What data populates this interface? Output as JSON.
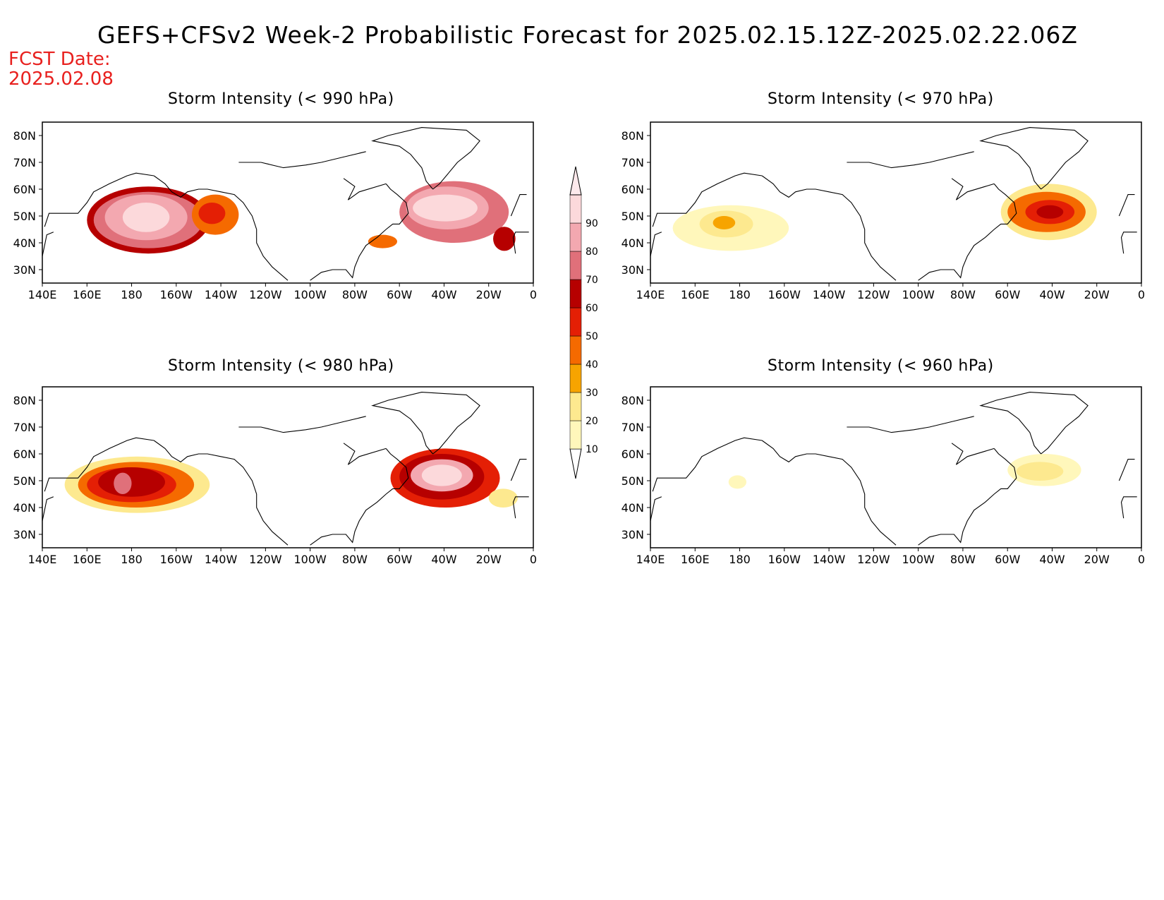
{
  "title": "GEFS+CFSv2 Week-2 Probabilistic Forecast for 2025.02.15.12Z-2025.02.22.06Z",
  "fcst_label": "FCST Date:",
  "fcst_date": "2025.02.08",
  "colors": {
    "text_red": "#e8201e",
    "levels": [
      "#fff7bb",
      "#fde98f",
      "#f7a400",
      "#f56a00",
      "#e41f05",
      "#b60000",
      "#e0707a",
      "#f3a8b0",
      "#fcd9db"
    ]
  },
  "colorbar": {
    "levels": [
      "10",
      "20",
      "30",
      "40",
      "50",
      "60",
      "70",
      "80",
      "90"
    ]
  },
  "map": {
    "lon_labels": [
      "140E",
      "160E",
      "180",
      "160W",
      "140W",
      "120W",
      "100W",
      "80W",
      "60W",
      "40W",
      "20W",
      "0"
    ],
    "lat_labels": [
      "80N",
      "70N",
      "60N",
      "50N",
      "40N",
      "30N"
    ],
    "lon_range": [
      140,
      360
    ],
    "lat_range": [
      25,
      85
    ]
  },
  "panels": [
    {
      "title": "Storm Intensity (< 990 hPa)",
      "fields": [
        {
          "lon": [
            160,
            215
          ],
          "lat": [
            36,
            61
          ],
          "level": 5
        },
        {
          "lon": [
            163,
            212
          ],
          "lat": [
            38,
            59
          ],
          "level": 6
        },
        {
          "lon": [
            168,
            205
          ],
          "lat": [
            41,
            58
          ],
          "level": 7
        },
        {
          "lon": [
            176,
            197
          ],
          "lat": [
            44,
            55
          ],
          "level": 8
        },
        {
          "lon": [
            207,
            228
          ],
          "lat": [
            43,
            58
          ],
          "level": 3
        },
        {
          "lon": [
            210,
            222
          ],
          "lat": [
            47,
            55
          ],
          "level": 4
        },
        {
          "lon": [
            300,
            349
          ],
          "lat": [
            40,
            63
          ],
          "level": 6
        },
        {
          "lon": [
            303,
            340
          ],
          "lat": [
            45,
            61
          ],
          "level": 7
        },
        {
          "lon": [
            306,
            335
          ],
          "lat": [
            48,
            58
          ],
          "level": 8
        },
        {
          "lon": [
            342,
            352
          ],
          "lat": [
            37,
            46
          ],
          "level": 5
        },
        {
          "lon": [
            286,
            299
          ],
          "lat": [
            38,
            43
          ],
          "level": 3
        }
      ]
    },
    {
      "title": "Storm Intensity (< 970 hPa)",
      "fields": [
        {
          "lon": [
            150,
            202
          ],
          "lat": [
            37,
            54
          ],
          "level": 0
        },
        {
          "lon": [
            162,
            186
          ],
          "lat": [
            42,
            52
          ],
          "level": 1
        },
        {
          "lon": [
            168,
            178
          ],
          "lat": [
            45,
            50
          ],
          "level": 2
        },
        {
          "lon": [
            297,
            340
          ],
          "lat": [
            41,
            62
          ],
          "level": 1
        },
        {
          "lon": [
            300,
            335
          ],
          "lat": [
            44,
            59
          ],
          "level": 3
        },
        {
          "lon": [
            308,
            330
          ],
          "lat": [
            47,
            56
          ],
          "level": 4
        },
        {
          "lon": [
            313,
            325
          ],
          "lat": [
            49,
            54
          ],
          "level": 5
        }
      ]
    },
    {
      "title": "Storm Intensity (< 980 hPa)",
      "fields": [
        {
          "lon": [
            150,
            215
          ],
          "lat": [
            38,
            59
          ],
          "level": 1
        },
        {
          "lon": [
            156,
            208
          ],
          "lat": [
            40,
            57
          ],
          "level": 3
        },
        {
          "lon": [
            160,
            200
          ],
          "lat": [
            42,
            55
          ],
          "level": 4
        },
        {
          "lon": [
            165,
            195
          ],
          "lat": [
            44,
            55
          ],
          "level": 5
        },
        {
          "lon": [
            172,
            180
          ],
          "lat": [
            45,
            53
          ],
          "level": 6
        },
        {
          "lon": [
            296,
            345
          ],
          "lat": [
            40,
            62
          ],
          "level": 4
        },
        {
          "lon": [
            300,
            338
          ],
          "lat": [
            43,
            60
          ],
          "level": 5
        },
        {
          "lon": [
            305,
            333
          ],
          "lat": [
            46,
            58
          ],
          "level": 7
        },
        {
          "lon": [
            310,
            328
          ],
          "lat": [
            48,
            56
          ],
          "level": 8
        },
        {
          "lon": [
            340,
            353
          ],
          "lat": [
            40,
            47
          ],
          "level": 1
        }
      ]
    },
    {
      "title": "Storm Intensity (< 960 hPa)",
      "fields": [
        {
          "lon": [
            175,
            183
          ],
          "lat": [
            47,
            52
          ],
          "level": 0
        },
        {
          "lon": [
            300,
            333
          ],
          "lat": [
            48,
            60
          ],
          "level": 0
        },
        {
          "lon": [
            304,
            325
          ],
          "lat": [
            50,
            57
          ],
          "level": 1
        }
      ]
    }
  ]
}
